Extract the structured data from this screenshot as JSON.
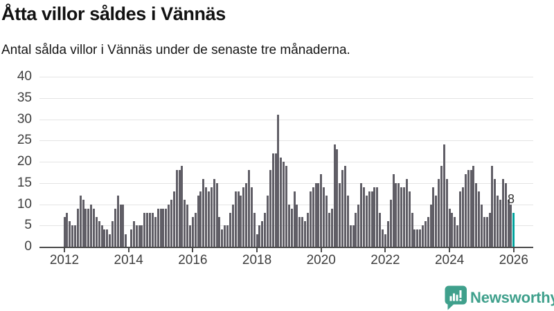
{
  "header": {
    "title": "Åtta villor såldes i Vännäs",
    "subtitle": "Antal sålda villor i Vännäs under de senaste tre månaderna."
  },
  "annotation": {
    "last_value_label": "8"
  },
  "branding": {
    "name": "Newsworthy",
    "icon": "newsworthy-speech-bubble-chart-icon",
    "color": "#3fa08c"
  },
  "colors": {
    "bar": "#605e66",
    "highlight": "#00a39d",
    "grid": "#e4e4e4",
    "axis": "#4a4a4a",
    "tick_text": "#3d3d3d"
  },
  "chart_data": {
    "type": "bar",
    "title": "Åtta villor såldes i Vännäs",
    "subtitle": "Antal sålda villor i Vännäs under de senaste tre månaderna.",
    "x_frequency": "monthly",
    "x_start": "2012-01",
    "x_end": "2026-01",
    "x_tick_labels": [
      "2012",
      "2014",
      "2016",
      "2018",
      "2020",
      "2022",
      "2024",
      "2026"
    ],
    "ylim": [
      0,
      40
    ],
    "y_ticks": [
      0,
      5,
      10,
      15,
      20,
      25,
      30,
      35,
      40
    ],
    "grid": true,
    "legend": false,
    "bar_color": "#605e66",
    "highlight_color": "#00a39d",
    "highlight_last_index": 168,
    "highlight_last_value": 8,
    "values": [
      7,
      8,
      6,
      5,
      5,
      9,
      12,
      11,
      9,
      9,
      10,
      9,
      7,
      6,
      5,
      4,
      4,
      3,
      6,
      9,
      12,
      10,
      10,
      3,
      0,
      4,
      6,
      5,
      5,
      5,
      8,
      8,
      8,
      8,
      7,
      9,
      9,
      9,
      9,
      10,
      11,
      13,
      18,
      18,
      19,
      11,
      10,
      5,
      7,
      8,
      12,
      13,
      16,
      14,
      13,
      14,
      16,
      15,
      7,
      4,
      5,
      5,
      8,
      10,
      13,
      13,
      12,
      14,
      15,
      18,
      14,
      8,
      3,
      5,
      6,
      8,
      12,
      18,
      22,
      22,
      31,
      21,
      20,
      19,
      10,
      9,
      13,
      10,
      7,
      7,
      6,
      8,
      13,
      14,
      15,
      15,
      17,
      14,
      12,
      8,
      9,
      24,
      23,
      15,
      18,
      19,
      12,
      5,
      5,
      8,
      10,
      15,
      14,
      12,
      13,
      13,
      14,
      14,
      8,
      4,
      3,
      6,
      11,
      17,
      15,
      15,
      14,
      14,
      16,
      13,
      8,
      4,
      4,
      4,
      5,
      6,
      7,
      10,
      14,
      12,
      16,
      19,
      24,
      16,
      9,
      8,
      7,
      5,
      13,
      14,
      17,
      18,
      18,
      19,
      15,
      13,
      10,
      7,
      7,
      8,
      19,
      16,
      12,
      11,
      16,
      15,
      11,
      10,
      8
    ]
  }
}
